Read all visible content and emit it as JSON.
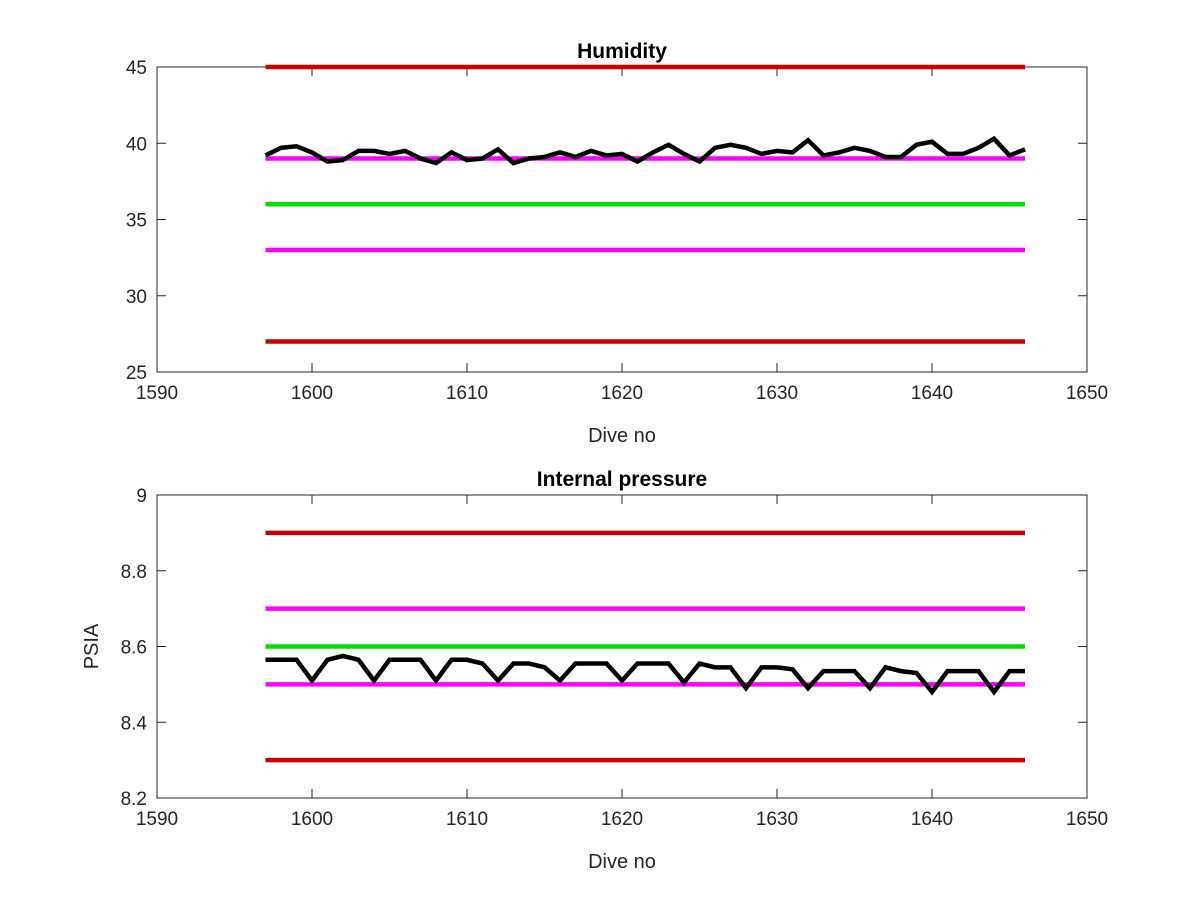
{
  "chart_data": [
    {
      "type": "line",
      "title": "Humidity",
      "xlabel": "Dive no",
      "ylabel": "",
      "xlim": [
        1590,
        1650
      ],
      "ylim": [
        25,
        45
      ],
      "xticks": [
        1590,
        1600,
        1610,
        1620,
        1630,
        1640,
        1650
      ],
      "yticks": [
        25,
        30,
        35,
        40,
        45
      ],
      "grid": false,
      "reference_lines": [
        {
          "y": 45,
          "x_range": [
            1597,
            1646
          ],
          "color": "#cc0000"
        },
        {
          "y": 39,
          "x_range": [
            1597,
            1646
          ],
          "color": "#ff00ff"
        },
        {
          "y": 36,
          "x_range": [
            1597,
            1646
          ],
          "color": "#00e000"
        },
        {
          "y": 33,
          "x_range": [
            1597,
            1646
          ],
          "color": "#ff00ff"
        },
        {
          "y": 27,
          "x_range": [
            1597,
            1646
          ],
          "color": "#cc0000"
        }
      ],
      "series": [
        {
          "color": "#000000",
          "x": [
            1597,
            1598,
            1599,
            1600,
            1601,
            1602,
            1603,
            1604,
            1605,
            1606,
            1607,
            1608,
            1609,
            1610,
            1611,
            1612,
            1613,
            1614,
            1615,
            1616,
            1617,
            1618,
            1619,
            1620,
            1621,
            1622,
            1623,
            1624,
            1625,
            1626,
            1627,
            1628,
            1629,
            1630,
            1631,
            1632,
            1633,
            1634,
            1635,
            1636,
            1637,
            1638,
            1639,
            1640,
            1641,
            1642,
            1643,
            1644,
            1645,
            1646
          ],
          "y": [
            39.2,
            39.7,
            39.8,
            39.4,
            38.8,
            38.9,
            39.5,
            39.5,
            39.3,
            39.5,
            39.0,
            38.7,
            39.4,
            38.9,
            39.0,
            39.6,
            38.7,
            39.0,
            39.1,
            39.4,
            39.1,
            39.5,
            39.2,
            39.3,
            38.8,
            39.4,
            39.9,
            39.3,
            38.8,
            39.7,
            39.9,
            39.7,
            39.3,
            39.5,
            39.4,
            40.2,
            39.2,
            39.4,
            39.7,
            39.5,
            39.1,
            39.1,
            39.9,
            40.1,
            39.3,
            39.3,
            39.7,
            40.3,
            39.2,
            39.6
          ]
        }
      ]
    },
    {
      "type": "line",
      "title": "Internal pressure",
      "xlabel": "Dive no",
      "ylabel": "PSIA",
      "xlim": [
        1590,
        1650
      ],
      "ylim": [
        8.2,
        9
      ],
      "xticks": [
        1590,
        1600,
        1610,
        1620,
        1630,
        1640,
        1650
      ],
      "yticks": [
        8.2,
        8.4,
        8.6,
        8.8,
        9
      ],
      "ytick_labels": [
        "8.2",
        "8.4",
        "8.6",
        "8.8",
        "9"
      ],
      "grid": false,
      "reference_lines": [
        {
          "y": 8.9,
          "x_range": [
            1597,
            1646
          ],
          "color": "#cc0000"
        },
        {
          "y": 8.7,
          "x_range": [
            1597,
            1646
          ],
          "color": "#ff00ff"
        },
        {
          "y": 8.6,
          "x_range": [
            1597,
            1646
          ],
          "color": "#00e000"
        },
        {
          "y": 8.5,
          "x_range": [
            1597,
            1646
          ],
          "color": "#ff00ff"
        },
        {
          "y": 8.3,
          "x_range": [
            1597,
            1646
          ],
          "color": "#cc0000"
        }
      ],
      "series": [
        {
          "color": "#000000",
          "x": [
            1597,
            1598,
            1599,
            1600,
            1601,
            1602,
            1603,
            1604,
            1605,
            1606,
            1607,
            1608,
            1609,
            1610,
            1611,
            1612,
            1613,
            1614,
            1615,
            1616,
            1617,
            1618,
            1619,
            1620,
            1621,
            1622,
            1623,
            1624,
            1625,
            1626,
            1627,
            1628,
            1629,
            1630,
            1631,
            1632,
            1633,
            1634,
            1635,
            1636,
            1637,
            1638,
            1639,
            1640,
            1641,
            1642,
            1643,
            1644,
            1645,
            1646
          ],
          "y": [
            8.565,
            8.565,
            8.565,
            8.51,
            8.565,
            8.575,
            8.565,
            8.51,
            8.565,
            8.565,
            8.565,
            8.51,
            8.565,
            8.565,
            8.555,
            8.51,
            8.555,
            8.555,
            8.545,
            8.51,
            8.555,
            8.555,
            8.555,
            8.51,
            8.555,
            8.555,
            8.555,
            8.505,
            8.555,
            8.545,
            8.545,
            8.49,
            8.545,
            8.545,
            8.54,
            8.49,
            8.535,
            8.535,
            8.535,
            8.49,
            8.545,
            8.535,
            8.53,
            8.48,
            8.535,
            8.535,
            8.535,
            8.48,
            8.535,
            8.535
          ]
        }
      ]
    }
  ]
}
